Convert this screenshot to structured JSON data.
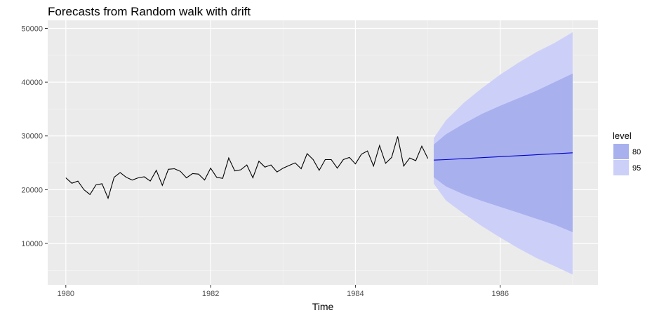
{
  "chart_data": {
    "type": "line",
    "title": "Forecasts from Random walk with drift",
    "xlabel": "Time",
    "ylabel": "",
    "xlim": [
      1979.75,
      1987.35
    ],
    "ylim": [
      2300,
      51500
    ],
    "x_ticks": [
      1980,
      1982,
      1984,
      1986
    ],
    "x_tick_labels": [
      "1980",
      "1982",
      "1984",
      "1986"
    ],
    "y_ticks": [
      10000,
      20000,
      30000,
      40000,
      50000
    ],
    "y_tick_labels": [
      "10000",
      "20000",
      "30000",
      "40000",
      "50000"
    ],
    "grid": true,
    "history": {
      "start": 1980.0,
      "frequency": 12,
      "values": [
        22200,
        21200,
        21600,
        20000,
        19100,
        20900,
        21100,
        18400,
        22300,
        23200,
        22300,
        21800,
        22200,
        22400,
        21600,
        23600,
        20800,
        23800,
        23900,
        23400,
        22200,
        23000,
        22900,
        21800,
        24000,
        22300,
        22100,
        25900,
        23500,
        23700,
        24600,
        22200,
        25300,
        24200,
        24600,
        23300,
        24000,
        24500,
        25000,
        23900,
        26700,
        25600,
        23600,
        25600,
        25600,
        24000,
        25600,
        26000,
        24800,
        26600,
        27200,
        24400,
        28200,
        24900,
        26000,
        29900,
        24400,
        25900,
        25400,
        28100,
        25800
      ]
    },
    "forecast": {
      "x": [
        1985.083,
        1985.25,
        1985.5,
        1985.75,
        1986.0,
        1986.25,
        1986.5,
        1986.75,
        1987.0
      ],
      "mean": [
        25500,
        25600,
        25780,
        25960,
        26140,
        26320,
        26500,
        26680,
        26860
      ],
      "lo80": [
        22300,
        20600,
        19100,
        17900,
        16800,
        15700,
        14600,
        13500,
        12100
      ],
      "hi80": [
        28400,
        30300,
        32300,
        34100,
        35600,
        37000,
        38400,
        40000,
        41600
      ],
      "lo95": [
        21100,
        18000,
        15500,
        13200,
        11100,
        9100,
        7300,
        5800,
        4200
      ],
      "hi95": [
        29600,
        32900,
        36200,
        38900,
        41400,
        43600,
        45600,
        47300,
        49300
      ]
    },
    "legend": {
      "title": "level",
      "position": "right",
      "entries": [
        {
          "label": "80",
          "color": "#a8b0ee"
        },
        {
          "label": "95",
          "color": "#ccd0f8"
        }
      ]
    },
    "colors": {
      "panel": "#ebebeb",
      "grid_major": "#ffffff",
      "history_line": "#000000",
      "forecast_line": "#0000cc",
      "band80": "#a8b0ee",
      "band95": "#ccd0f8"
    }
  }
}
